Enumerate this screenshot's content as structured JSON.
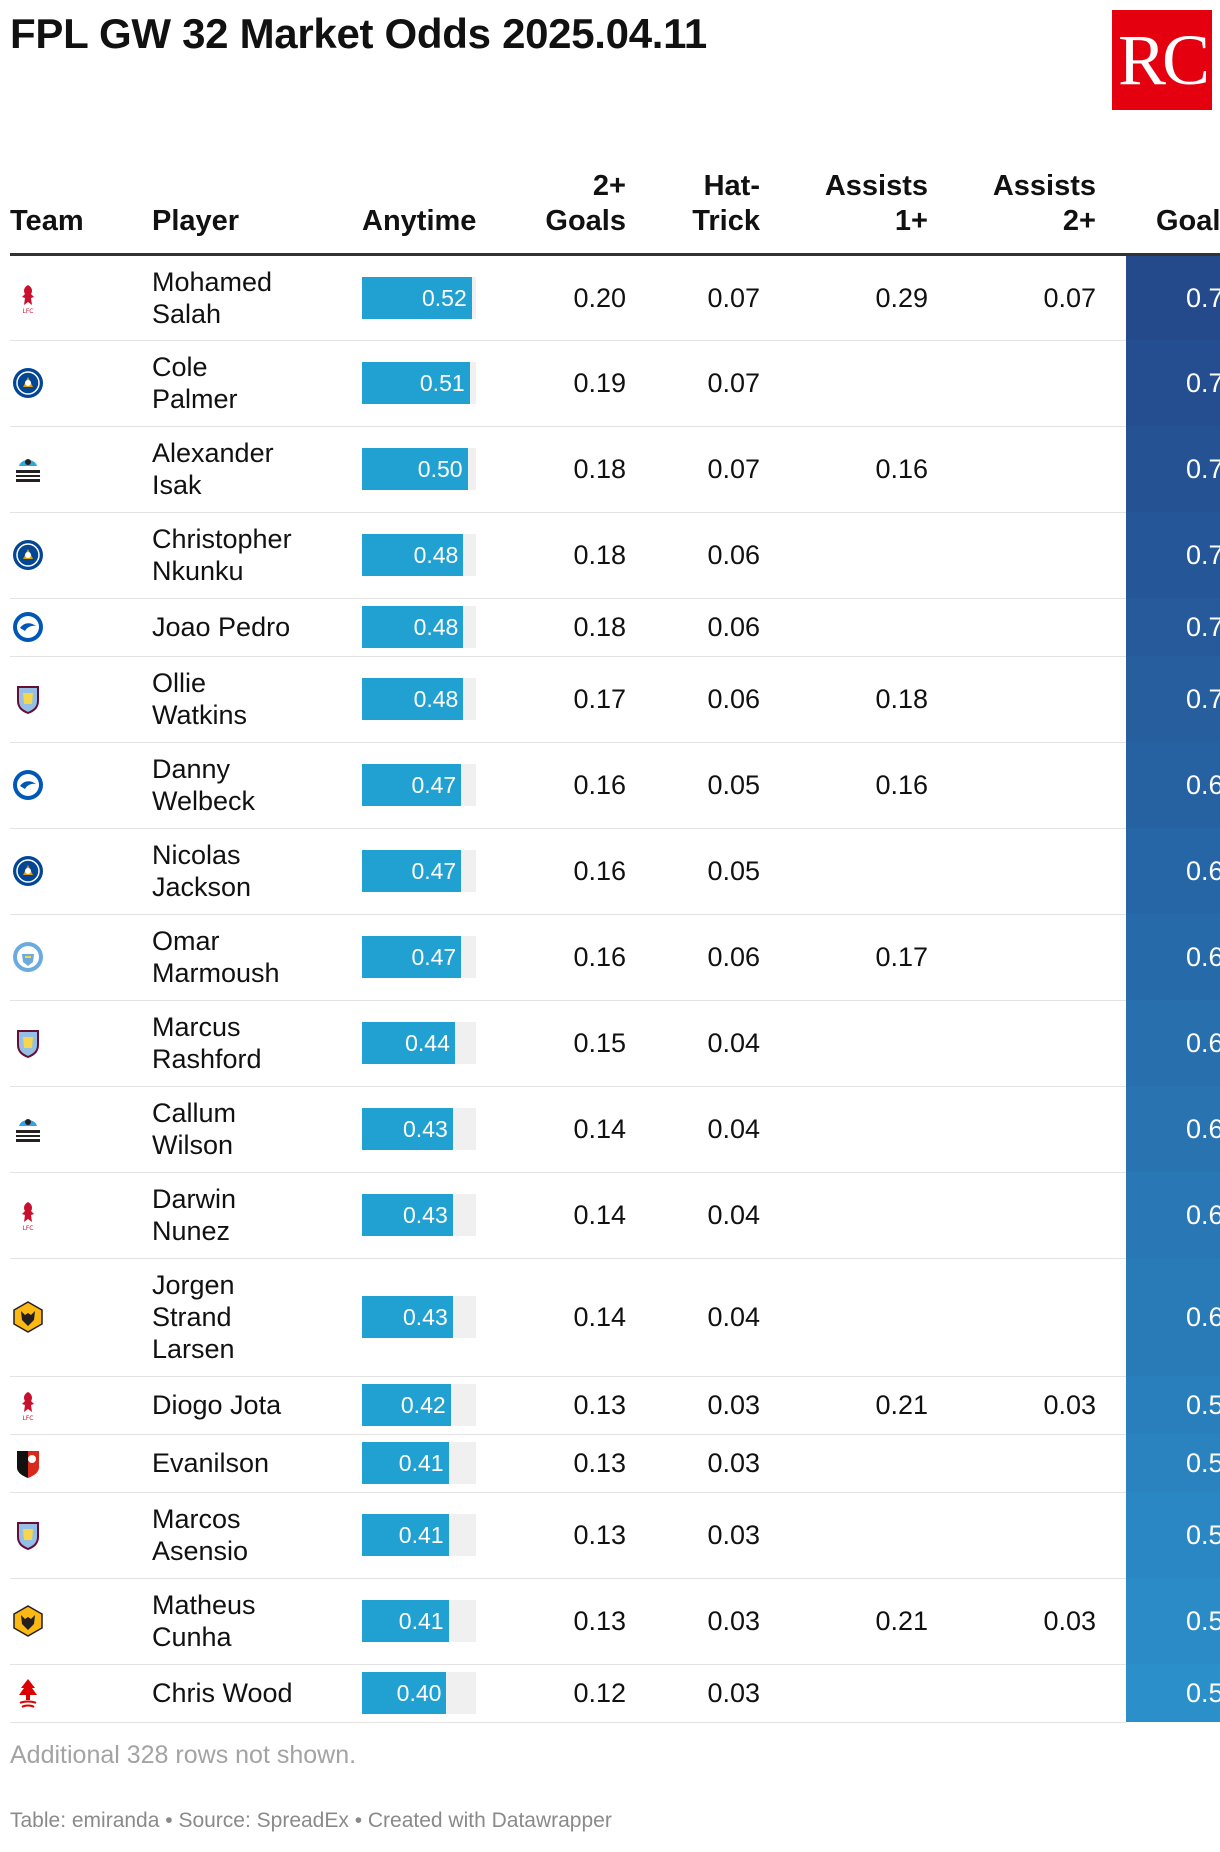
{
  "title": "FPL GW 32 Market Odds 2025.04.11",
  "logo_text": "RC",
  "colors": {
    "bar": "#21a0d2",
    "bar_track": "#f0f0f0",
    "goal_dark": "#244a8c",
    "goal_light": "#2b8fca"
  },
  "columns": [
    {
      "key": "team",
      "label": "Team"
    },
    {
      "key": "player",
      "label": "Player"
    },
    {
      "key": "anytime",
      "label": "Anytime"
    },
    {
      "key": "goals2",
      "label": "2+\nGoals"
    },
    {
      "key": "hattrick",
      "label": "Hat-\nTrick"
    },
    {
      "key": "assists1",
      "label": "Assists\n1+"
    },
    {
      "key": "assists2",
      "label": "Assists\n2+"
    },
    {
      "key": "goal",
      "label": "Goal"
    }
  ],
  "chart_data": {
    "type": "table",
    "title": "FPL GW 32 Market Odds 2025.04.11",
    "anytime_range": [
      0,
      0.54
    ],
    "rows": [
      {
        "team_icon": "liverpool-icon",
        "player": "Mohamed\nSalah",
        "anytime": 0.52,
        "anytime_label": "0.52",
        "goals2": "0.20",
        "hattrick": "0.07",
        "assists1": "0.29",
        "assists2": "0.07",
        "goal": "0.7",
        "height": 86
      },
      {
        "team_icon": "chelsea-icon",
        "player": "Cole\nPalmer",
        "anytime": 0.51,
        "anytime_label": "0.51",
        "goals2": "0.19",
        "hattrick": "0.07",
        "assists1": "",
        "assists2": "",
        "goal": "0.7",
        "height": 86
      },
      {
        "team_icon": "newcastle-icon",
        "player": "Alexander\nIsak",
        "anytime": 0.5,
        "anytime_label": "0.50",
        "goals2": "0.18",
        "hattrick": "0.07",
        "assists1": "0.16",
        "assists2": "",
        "goal": "0.7",
        "height": 86
      },
      {
        "team_icon": "chelsea-icon",
        "player": "Christopher\nNkunku",
        "anytime": 0.48,
        "anytime_label": "0.48",
        "goals2": "0.18",
        "hattrick": "0.06",
        "assists1": "",
        "assists2": "",
        "goal": "0.7",
        "height": 86
      },
      {
        "team_icon": "brighton-icon",
        "player": "Joao Pedro",
        "anytime": 0.48,
        "anytime_label": "0.48",
        "goals2": "0.18",
        "hattrick": "0.06",
        "assists1": "",
        "assists2": "",
        "goal": "0.7",
        "height": 58
      },
      {
        "team_icon": "aston-villa-icon",
        "player": "Ollie\nWatkins",
        "anytime": 0.48,
        "anytime_label": "0.48",
        "goals2": "0.17",
        "hattrick": "0.06",
        "assists1": "0.18",
        "assists2": "",
        "goal": "0.7",
        "height": 86
      },
      {
        "team_icon": "brighton-icon",
        "player": "Danny\nWelbeck",
        "anytime": 0.47,
        "anytime_label": "0.47",
        "goals2": "0.16",
        "hattrick": "0.05",
        "assists1": "0.16",
        "assists2": "",
        "goal": "0.6",
        "height": 86
      },
      {
        "team_icon": "chelsea-icon",
        "player": "Nicolas\nJackson",
        "anytime": 0.47,
        "anytime_label": "0.47",
        "goals2": "0.16",
        "hattrick": "0.05",
        "assists1": "",
        "assists2": "",
        "goal": "0.6",
        "height": 86
      },
      {
        "team_icon": "man-city-icon",
        "player": "Omar\nMarmoush",
        "anytime": 0.47,
        "anytime_label": "0.47",
        "goals2": "0.16",
        "hattrick": "0.06",
        "assists1": "0.17",
        "assists2": "",
        "goal": "0.6",
        "height": 86
      },
      {
        "team_icon": "aston-villa-icon",
        "player": "Marcus\nRashford",
        "anytime": 0.44,
        "anytime_label": "0.44",
        "goals2": "0.15",
        "hattrick": "0.04",
        "assists1": "",
        "assists2": "",
        "goal": "0.6",
        "height": 86
      },
      {
        "team_icon": "newcastle-icon",
        "player": "Callum\nWilson",
        "anytime": 0.43,
        "anytime_label": "0.43",
        "goals2": "0.14",
        "hattrick": "0.04",
        "assists1": "",
        "assists2": "",
        "goal": "0.6",
        "height": 86
      },
      {
        "team_icon": "liverpool-icon",
        "player": "Darwin\nNunez",
        "anytime": 0.43,
        "anytime_label": "0.43",
        "goals2": "0.14",
        "hattrick": "0.04",
        "assists1": "",
        "assists2": "",
        "goal": "0.6",
        "height": 86
      },
      {
        "team_icon": "wolves-icon",
        "player": "Jorgen\nStrand\nLarsen",
        "anytime": 0.43,
        "anytime_label": "0.43",
        "goals2": "0.14",
        "hattrick": "0.04",
        "assists1": "",
        "assists2": "",
        "goal": "0.6",
        "height": 118
      },
      {
        "team_icon": "liverpool-icon",
        "player": "Diogo Jota",
        "anytime": 0.42,
        "anytime_label": "0.42",
        "goals2": "0.13",
        "hattrick": "0.03",
        "assists1": "0.21",
        "assists2": "0.03",
        "goal": "0.5",
        "height": 58
      },
      {
        "team_icon": "bournemouth-icon",
        "player": "Evanilson",
        "anytime": 0.41,
        "anytime_label": "0.41",
        "goals2": "0.13",
        "hattrick": "0.03",
        "assists1": "",
        "assists2": "",
        "goal": "0.5",
        "height": 58
      },
      {
        "team_icon": "aston-villa-icon",
        "player": "Marcos\nAsensio",
        "anytime": 0.41,
        "anytime_label": "0.41",
        "goals2": "0.13",
        "hattrick": "0.03",
        "assists1": "",
        "assists2": "",
        "goal": "0.5",
        "height": 86
      },
      {
        "team_icon": "wolves-icon",
        "player": "Matheus\nCunha",
        "anytime": 0.41,
        "anytime_label": "0.41",
        "goals2": "0.13",
        "hattrick": "0.03",
        "assists1": "0.21",
        "assists2": "0.03",
        "goal": "0.5",
        "height": 86
      },
      {
        "team_icon": "nottingham-forest-icon",
        "player": "Chris Wood",
        "anytime": 0.4,
        "anytime_label": "0.40",
        "goals2": "0.12",
        "hattrick": "0.03",
        "assists1": "",
        "assists2": "",
        "goal": "0.5",
        "height": 58
      }
    ]
  },
  "note": "Additional 328 rows not shown.",
  "footer": "Table: emiranda • Source: SpreadEx • Created with Datawrapper"
}
